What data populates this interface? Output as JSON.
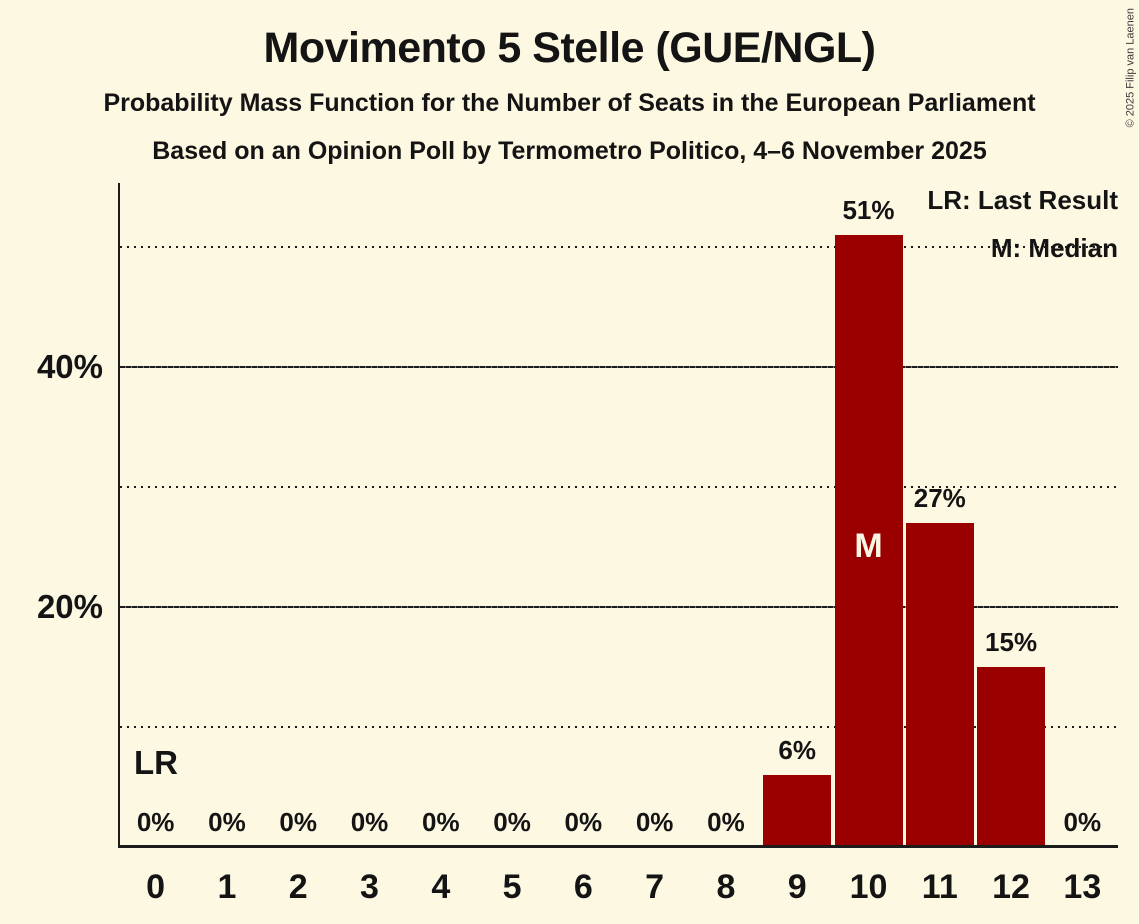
{
  "copyright": "© 2025 Filip van Laenen",
  "header": {
    "title": "Movimento 5 Stelle (GUE/NGL)",
    "subtitle": "Probability Mass Function for the Number of Seats in the European Parliament",
    "subsubtitle": "Based on an Opinion Poll by Termometro Politico, 4–6 November 2025"
  },
  "legend": {
    "lr_label": "LR: Last Result",
    "m_label": "M: Median"
  },
  "chart_data": {
    "type": "bar",
    "title": "Movimento 5 Stelle (GUE/NGL)",
    "categories": [
      "0",
      "1",
      "2",
      "3",
      "4",
      "5",
      "6",
      "7",
      "8",
      "9",
      "10",
      "11",
      "12",
      "13"
    ],
    "values": [
      0,
      0,
      0,
      0,
      0,
      0,
      0,
      0,
      0,
      6,
      51,
      27,
      15,
      0
    ],
    "bar_labels": [
      "0%",
      "0%",
      "0%",
      "0%",
      "0%",
      "0%",
      "0%",
      "0%",
      "0%",
      "6%",
      "51%",
      "27%",
      "15%",
      "0%"
    ],
    "xlabel": "",
    "ylabel": "",
    "ylim": [
      0,
      55.3
    ],
    "yticks": [
      {
        "value": 20,
        "label": "20%"
      },
      {
        "value": 40,
        "label": "40%"
      }
    ],
    "gridlines": [
      {
        "value": 10,
        "style": "dotted"
      },
      {
        "value": 20,
        "style": "solid"
      },
      {
        "value": 30,
        "style": "dotted"
      },
      {
        "value": 40,
        "style": "solid"
      },
      {
        "value": 50,
        "style": "dotted"
      }
    ],
    "annotations": {
      "last_result": {
        "label": "LR",
        "category": "0"
      },
      "median": {
        "label": "M",
        "category": "10"
      }
    },
    "colors": {
      "background": "#FDF8E2",
      "bar": "#9B0000",
      "text": "#141414",
      "grid": "#1C1C1C",
      "median_label": "#FBF6E4"
    },
    "legend_position": "top-right",
    "grid": "horizontal-only"
  }
}
